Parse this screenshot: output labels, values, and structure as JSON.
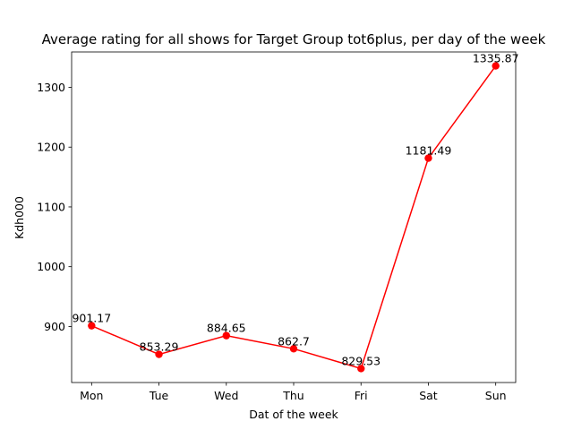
{
  "chart_data": {
    "type": "line",
    "title": "Average rating for all shows for Target Group tot6plus, per day of the week",
    "xlabel": "Dat of the week",
    "ylabel": "Kdh000",
    "categories": [
      "Mon",
      "Tue",
      "Wed",
      "Thu",
      "Fri",
      "Sat",
      "Sun"
    ],
    "values": [
      901.17,
      853.29,
      884.65,
      862.7,
      829.53,
      1181.49,
      1335.87
    ],
    "data_labels": [
      "901.17",
      "853.29",
      "884.65",
      "862.7",
      "829.53",
      "1181.49",
      "1335.87"
    ],
    "yticks": [
      900,
      1000,
      1100,
      1200,
      1300
    ],
    "ylim": [
      806.2,
      1359.2
    ],
    "line_color": "#ff0000",
    "marker": "circle",
    "grid": false
  }
}
